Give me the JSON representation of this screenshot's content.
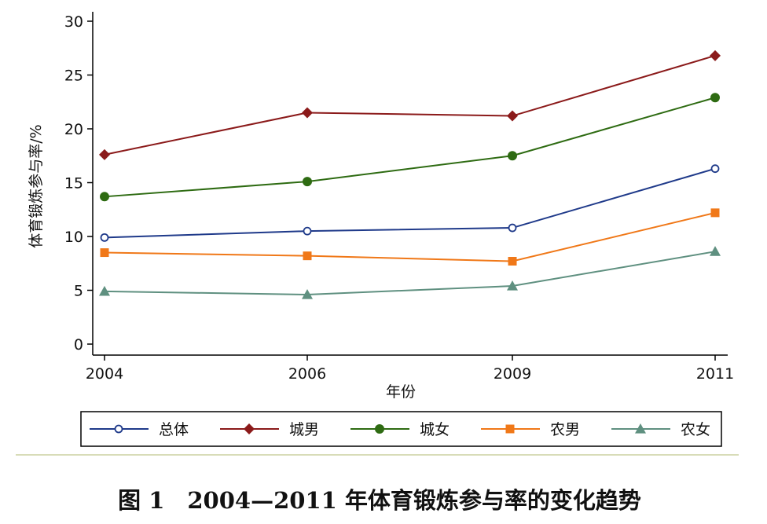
{
  "chart_data": {
    "type": "line",
    "x": [
      "2004",
      "2006",
      "2009",
      "2011"
    ],
    "xlabel": "年份",
    "ylabel": "体育锻炼参与率/%",
    "ylim": [
      0,
      30
    ],
    "yticks": [
      0,
      5,
      10,
      15,
      20,
      25,
      30
    ],
    "grid": false,
    "legend_position": "bottom",
    "series": [
      {
        "name": "总体",
        "values": [
          9.9,
          10.5,
          10.8,
          16.3
        ],
        "color": "#1f3a8a",
        "marker": "circle-open"
      },
      {
        "name": "城男",
        "values": [
          17.6,
          21.5,
          21.2,
          26.8
        ],
        "color": "#8b1a1a",
        "marker": "diamond"
      },
      {
        "name": "城女",
        "values": [
          13.7,
          15.1,
          17.5,
          22.9
        ],
        "color": "#2e6b12",
        "marker": "circle"
      },
      {
        "name": "农男",
        "values": [
          8.5,
          8.2,
          7.7,
          12.2
        ],
        "color": "#f07818",
        "marker": "square"
      },
      {
        "name": "农女",
        "values": [
          4.9,
          4.6,
          5.4,
          8.6
        ],
        "color": "#5f9080",
        "marker": "triangle"
      }
    ]
  },
  "caption": "图 1　2004—2011 年体育锻炼参与率的变化趋势"
}
